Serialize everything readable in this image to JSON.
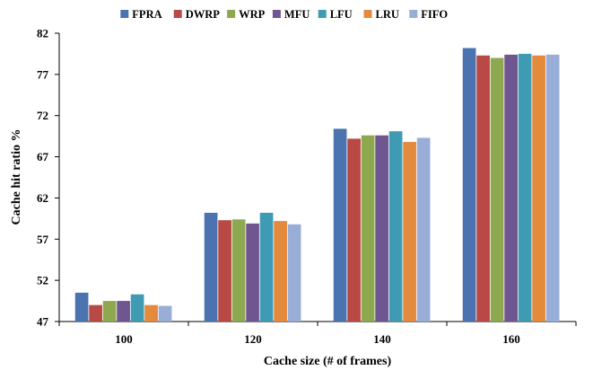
{
  "chart_data": {
    "type": "bar",
    "title": "",
    "xlabel": "Cache size (# of  frames)",
    "ylabel": "Cache hit ratio %",
    "categories": [
      "100",
      "120",
      "140",
      "160"
    ],
    "ylim": [
      47,
      82
    ],
    "yticks": [
      "47",
      "52",
      "57",
      "62",
      "67",
      "72",
      "77",
      "82"
    ],
    "grid": false,
    "legend_position": "top",
    "series": [
      {
        "name": "FPRA",
        "color": "#4a73b0",
        "values": [
          50.5,
          60.2,
          70.4,
          80.2
        ]
      },
      {
        "name": "DWRP",
        "color": "#b94945",
        "values": [
          49.0,
          59.3,
          69.2,
          79.3
        ]
      },
      {
        "name": "WRP",
        "color": "#8ea84f",
        "values": [
          49.5,
          59.4,
          69.6,
          79.0
        ]
      },
      {
        "name": "MFU",
        "color": "#705690",
        "values": [
          49.5,
          58.9,
          69.6,
          79.4
        ]
      },
      {
        "name": "LFU",
        "color": "#3f9bb4",
        "values": [
          50.3,
          60.2,
          70.1,
          79.5
        ]
      },
      {
        "name": "LRU",
        "color": "#e38a3c",
        "values": [
          49.0,
          59.2,
          68.8,
          79.3
        ]
      },
      {
        "name": "FIFO",
        "color": "#98aed7",
        "values": [
          48.9,
          58.8,
          69.3,
          79.4
        ]
      }
    ]
  }
}
